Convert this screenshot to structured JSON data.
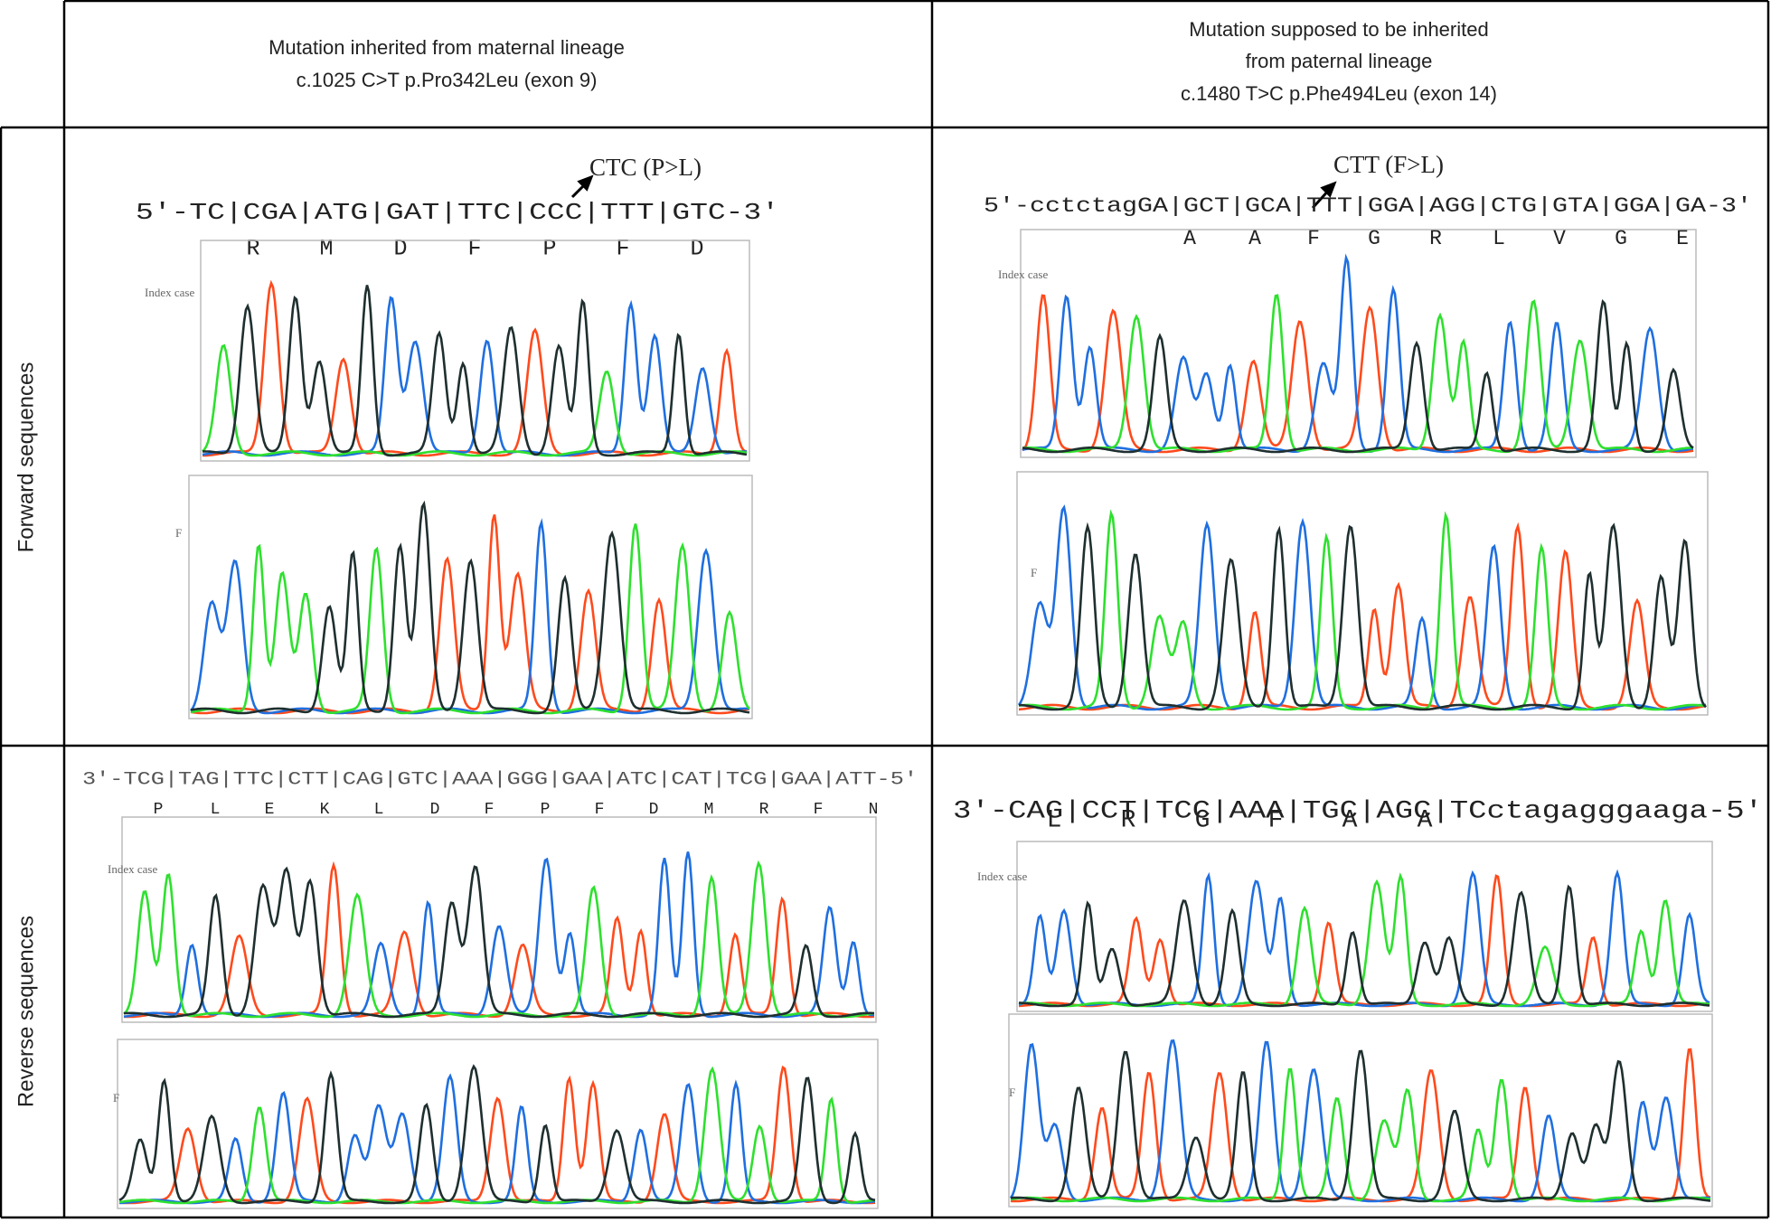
{
  "header": {
    "maternal": [
      "Mutation inherited from maternal lineage",
      "c.1025 C>T p.Pro342Leu (exon 9)"
    ],
    "paternal": [
      "Mutation supposed to be inherited",
      "from paternal lineage",
      "c.1480 T>C p.Phe494Leu (exon 14)"
    ]
  },
  "rows": [
    {
      "label": "Forward sequences",
      "maternal": {
        "mutation": "CTC  (P>L)",
        "sequence": "5′-TC|CGA|ATG|GAT|TTC|CCC|TTT|GTC-3′",
        "amino_acids": [
          "R",
          "M",
          "D",
          "F",
          "P",
          "F",
          "D"
        ],
        "trace_labels": [
          "Index case",
          "F"
        ]
      },
      "paternal": {
        "mutation": "CTT  (F>L)",
        "sequence": "5′-cctctagGA|GCT|GCA|TTT|GGA|AGG|CTG|GTA|GGA|GA-3′",
        "amino_acids": [
          "A",
          "A",
          "F",
          "G",
          "R",
          "L",
          "V",
          "G",
          "E"
        ],
        "trace_labels": [
          "Index case",
          "F"
        ]
      }
    },
    {
      "label": "Reverse sequences",
      "maternal": {
        "sequence": "3′-TCG|TAG|TTC|CTT|CAG|GTC|AAA|GGG|GAA|ATC|CAT|TCG|GAA|ATT-5′",
        "amino_acids": [
          "P",
          "L",
          "E",
          "K",
          "L",
          "D",
          "F",
          "P",
          "F",
          "D",
          "M",
          "R",
          "F",
          "N"
        ],
        "trace_labels": [
          "Index case",
          "F"
        ]
      },
      "paternal": {
        "sequence": "3′-CAG|CCT|TCC|AAA|TGC|AGC|TCctagagggaaga-5′",
        "amino_acids": [
          "L",
          "R",
          "G",
          "F",
          "A",
          "A"
        ],
        "trace_labels": [
          "Index case",
          "F"
        ]
      }
    }
  ]
}
